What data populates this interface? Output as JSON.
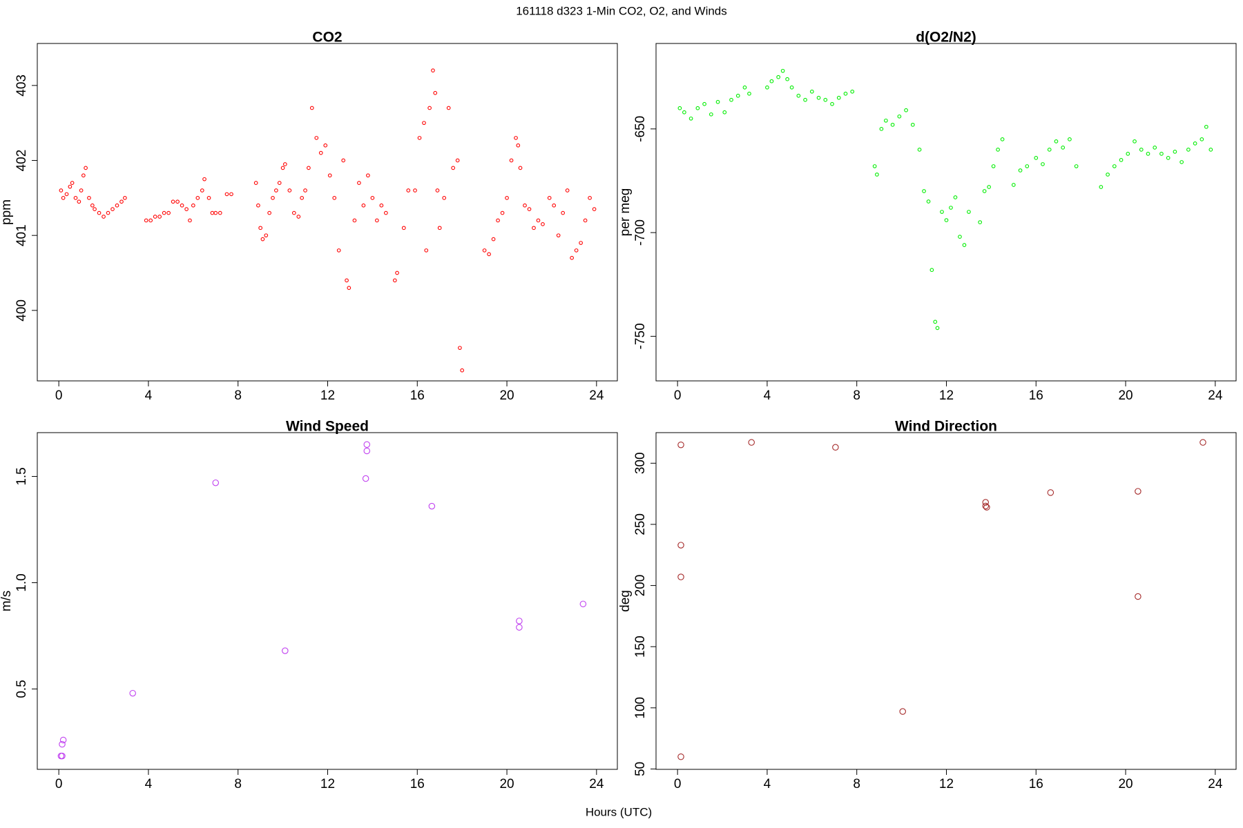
{
  "title": "161118   d323   1-Min CO2, O2, and Winds",
  "xlabel": "Hours (UTC)",
  "chart_data": [
    {
      "type": "scatter",
      "title": "CO2",
      "ylabel": "ppm",
      "color": "#ff0000",
      "x": [
        0.1,
        0.2,
        0.35,
        0.5,
        0.6,
        0.75,
        0.9,
        1.0,
        1.1,
        1.2,
        1.35,
        1.5,
        1.6,
        1.8,
        2.0,
        2.2,
        2.4,
        2.6,
        2.8,
        2.95,
        3.9,
        4.1,
        4.3,
        4.5,
        4.7,
        4.9,
        5.1,
        5.3,
        5.5,
        5.7,
        5.85,
        6.0,
        6.2,
        6.4,
        6.5,
        6.7,
        6.85,
        7.0,
        7.2,
        7.5,
        7.7,
        8.8,
        8.9,
        9.0,
        9.1,
        9.25,
        9.4,
        9.55,
        9.7,
        9.85,
        10.0,
        10.1,
        10.3,
        10.5,
        10.7,
        10.85,
        11.0,
        11.15,
        11.3,
        11.5,
        11.7,
        11.9,
        12.1,
        12.3,
        12.5,
        12.7,
        12.85,
        12.95,
        13.2,
        13.4,
        13.6,
        13.8,
        14.0,
        14.2,
        14.4,
        14.6,
        15.0,
        15.1,
        15.4,
        15.6,
        15.9,
        16.1,
        16.3,
        16.4,
        16.55,
        16.7,
        16.8,
        16.9,
        17.0,
        17.2,
        17.4,
        17.6,
        17.8,
        17.9,
        18.0,
        19.0,
        19.2,
        19.4,
        19.6,
        19.8,
        20.0,
        20.2,
        20.4,
        20.5,
        20.6,
        20.8,
        21.0,
        21.2,
        21.4,
        21.6,
        21.9,
        22.1,
        22.3,
        22.5,
        22.7,
        22.9,
        23.1,
        23.3,
        23.5,
        23.7,
        23.9
      ],
      "values": [
        401.6,
        401.5,
        401.55,
        401.65,
        401.7,
        401.5,
        401.45,
        401.6,
        401.8,
        401.9,
        401.5,
        401.4,
        401.35,
        401.3,
        401.25,
        401.3,
        401.35,
        401.4,
        401.45,
        401.5,
        401.2,
        401.2,
        401.25,
        401.25,
        401.3,
        401.3,
        401.45,
        401.45,
        401.4,
        401.35,
        401.2,
        401.4,
        401.5,
        401.6,
        401.75,
        401.5,
        401.3,
        401.3,
        401.3,
        401.55,
        401.55,
        401.7,
        401.4,
        401.1,
        400.95,
        401.0,
        401.3,
        401.5,
        401.6,
        401.7,
        401.9,
        401.95,
        401.6,
        401.3,
        401.25,
        401.5,
        401.6,
        401.9,
        402.7,
        402.3,
        402.1,
        402.2,
        401.8,
        401.5,
        400.8,
        402.0,
        400.4,
        400.3,
        401.2,
        401.7,
        401.4,
        401.8,
        401.5,
        401.2,
        401.4,
        401.3,
        400.4,
        400.5,
        401.1,
        401.6,
        401.6,
        402.3,
        402.5,
        400.8,
        402.7,
        403.2,
        402.9,
        401.6,
        401.1,
        401.5,
        402.7,
        401.9,
        402.0,
        399.5,
        399.2,
        400.8,
        400.75,
        400.95,
        401.2,
        401.3,
        401.5,
        402.0,
        402.3,
        402.2,
        401.9,
        401.4,
        401.35,
        401.1,
        401.2,
        401.15,
        401.5,
        401.4,
        401.0,
        401.3,
        401.6,
        400.7,
        400.8,
        400.9,
        401.2,
        401.5,
        401.35
      ],
      "xlim": [
        -0.96,
        24.93
      ],
      "ylim": [
        399.06,
        403.56
      ],
      "xticks": [
        0,
        4,
        8,
        12,
        16,
        20,
        24
      ],
      "yticks": [
        400,
        401,
        402,
        403
      ]
    },
    {
      "type": "scatter",
      "title": "d(O2/N2)",
      "ylabel": "per meg",
      "color": "#00ee00",
      "x": [
        0.1,
        0.3,
        0.6,
        0.9,
        1.2,
        1.5,
        1.8,
        2.1,
        2.4,
        2.7,
        3.0,
        3.2,
        4.0,
        4.2,
        4.5,
        4.7,
        4.9,
        5.1,
        5.4,
        5.7,
        6.0,
        6.3,
        6.6,
        6.9,
        7.2,
        7.5,
        7.8,
        8.8,
        8.9,
        9.1,
        9.3,
        9.6,
        9.9,
        10.2,
        10.5,
        10.8,
        11.0,
        11.2,
        11.35,
        11.5,
        11.6,
        11.8,
        12.0,
        12.2,
        12.4,
        12.6,
        12.8,
        13.0,
        13.5,
        13.7,
        13.9,
        14.1,
        14.3,
        14.5,
        15.0,
        15.3,
        15.6,
        16.0,
        16.3,
        16.6,
        16.9,
        17.2,
        17.5,
        17.8,
        18.9,
        19.2,
        19.5,
        19.8,
        20.1,
        20.4,
        20.7,
        21.0,
        21.3,
        21.6,
        21.9,
        22.2,
        22.5,
        22.8,
        23.1,
        23.4,
        23.6,
        23.8
      ],
      "values": [
        -640,
        -642,
        -645,
        -640,
        -638,
        -643,
        -637,
        -642,
        -636,
        -634,
        -630,
        -633,
        -630,
        -627,
        -625,
        -622,
        -626,
        -630,
        -634,
        -636,
        -632,
        -635,
        -636,
        -638,
        -635,
        -633,
        -632,
        -668,
        -672,
        -650,
        -646,
        -648,
        -644,
        -641,
        -648,
        -660,
        -680,
        -685,
        -718,
        -743,
        -746,
        -690,
        -694,
        -688,
        -683,
        -702,
        -706,
        -690,
        -695,
        -680,
        -678,
        -668,
        -660,
        -655,
        -677,
        -670,
        -668,
        -664,
        -667,
        -660,
        -656,
        -659,
        -655,
        -668,
        -678,
        -672,
        -668,
        -665,
        -662,
        -656,
        -660,
        -662,
        -659,
        -662,
        -664,
        -661,
        -666,
        -660,
        -657,
        -655,
        -649,
        -660
      ],
      "xlim": [
        -0.96,
        24.93
      ],
      "ylim": [
        -771.5,
        -608.8
      ],
      "xticks": [
        0,
        4,
        8,
        12,
        16,
        20,
        24
      ],
      "yticks": [
        -750,
        -700,
        -650
      ]
    },
    {
      "type": "scatter",
      "title": "Wind Speed",
      "ylabel": "m/s",
      "color": "#c040f0",
      "x": [
        0.1,
        0.15,
        0.2,
        0.15,
        3.3,
        7.0,
        10.1,
        13.75,
        13.75,
        13.7,
        16.65,
        20.55,
        20.55,
        23.4
      ],
      "values": [
        0.185,
        0.185,
        0.26,
        0.24,
        0.48,
        1.47,
        0.68,
        1.65,
        1.62,
        1.49,
        1.36,
        0.82,
        0.79,
        0.9
      ],
      "xlim": [
        -0.96,
        24.93
      ],
      "ylim": [
        0.122,
        1.706
      ],
      "xticks": [
        0,
        4,
        8,
        12,
        16,
        20,
        24
      ],
      "yticks": [
        0.5,
        {
          "value": 1,
          "label": "1.0"
        },
        1.5
      ]
    },
    {
      "type": "scatter",
      "title": "Wind Direction",
      "ylabel": "deg",
      "color": "#a52a2a",
      "x": [
        0.15,
        0.15,
        0.15,
        0.15,
        3.3,
        7.05,
        10.05,
        13.75,
        13.75,
        13.8,
        16.65,
        20.55,
        20.55,
        23.45
      ],
      "values": [
        315,
        233,
        207,
        60,
        317,
        313,
        97,
        268,
        265,
        264,
        276,
        277,
        191,
        317
      ],
      "xlim": [
        -0.96,
        24.93
      ],
      "ylim": [
        49.7,
        325
      ],
      "xticks": [
        0,
        4,
        8,
        12,
        16,
        20,
        24
      ],
      "yticks": [
        50,
        100,
        150,
        200,
        250,
        300
      ]
    }
  ]
}
